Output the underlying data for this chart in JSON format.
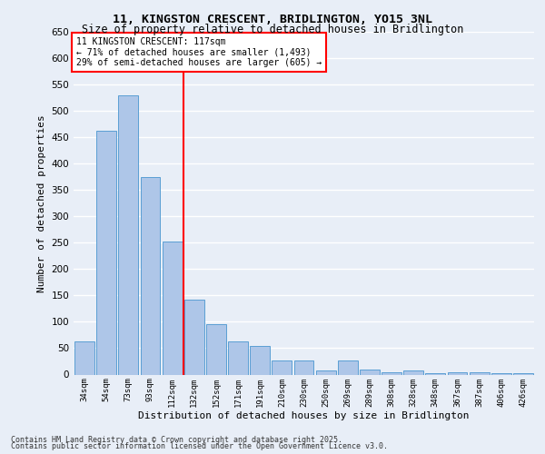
{
  "title1": "11, KINGSTON CRESCENT, BRIDLINGTON, YO15 3NL",
  "title2": "Size of property relative to detached houses in Bridlington",
  "xlabel": "Distribution of detached houses by size in Bridlington",
  "ylabel": "Number of detached properties",
  "categories": [
    "34sqm",
    "54sqm",
    "73sqm",
    "93sqm",
    "112sqm",
    "132sqm",
    "152sqm",
    "171sqm",
    "191sqm",
    "210sqm",
    "230sqm",
    "250sqm",
    "269sqm",
    "289sqm",
    "308sqm",
    "328sqm",
    "348sqm",
    "367sqm",
    "387sqm",
    "406sqm",
    "426sqm"
  ],
  "values": [
    63,
    463,
    530,
    375,
    252,
    142,
    95,
    63,
    55,
    27,
    27,
    7,
    27,
    10,
    4,
    7,
    2,
    5,
    5,
    3,
    3
  ],
  "bar_color": "#aec6e8",
  "bar_edge_color": "#5a9fd4",
  "vline_index": 4,
  "vline_color": "red",
  "annotation_title": "11 KINGSTON CRESCENT: 117sqm",
  "annotation_line1": "← 71% of detached houses are smaller (1,493)",
  "annotation_line2": "29% of semi-detached houses are larger (605) →",
  "ylim": [
    0,
    650
  ],
  "yticks": [
    0,
    50,
    100,
    150,
    200,
    250,
    300,
    350,
    400,
    450,
    500,
    550,
    600,
    650
  ],
  "background_color": "#e8eef7",
  "plot_bg_color": "#e8eef7",
  "grid_color": "#ffffff",
  "footer1": "Contains HM Land Registry data © Crown copyright and database right 2025.",
  "footer2": "Contains public sector information licensed under the Open Government Licence v3.0."
}
